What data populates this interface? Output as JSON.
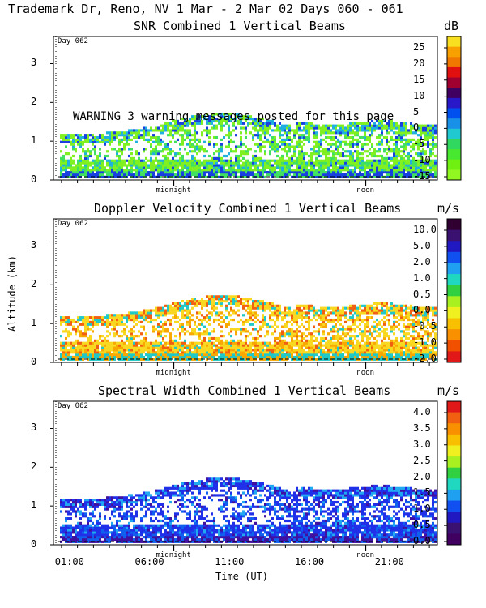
{
  "header": {
    "title": "Trademark Dr, Reno, NV   1 Mar -  2 Mar 02 Days 060 - 061"
  },
  "warning": "WARNING  3 warning messages posted for this page",
  "axes": {
    "ylabel": "Altitude (km)",
    "xlabel": "Time (UT)",
    "day_marker": "Day 062",
    "midnight_label": "midnight",
    "noon_label": "noon",
    "yticks": [
      "0",
      "1",
      "2",
      "3"
    ],
    "xticks": [
      "01:00",
      "06:00",
      "11:00",
      "16:00",
      "21:00"
    ]
  },
  "chart_data": [
    {
      "type": "heatmap",
      "title": "SNR Combined 1 Vertical Beams",
      "unit": "dB",
      "colorbar_ticks": [
        "25",
        "20",
        "15",
        "10",
        "5",
        "0",
        "-5",
        "-10",
        "-15"
      ],
      "colorbar_colors": [
        "#f8e020",
        "#f8a000",
        "#f07800",
        "#e01010",
        "#a00030",
        "#400060",
        "#2818c8",
        "#0050f0",
        "#1890e8",
        "#20c8d0",
        "#30d860",
        "#48e830",
        "#70f010",
        "#90f820"
      ],
      "ylim": [
        0,
        3.7
      ],
      "xlim_hours": [
        0,
        24
      ],
      "dominant_colors": [
        "#80f020",
        "#40e060",
        "#20b0e0",
        "#1840e0"
      ]
    },
    {
      "type": "heatmap",
      "title": "Doppler Velocity Combined 1 Vertical Beams",
      "unit": "m/s",
      "colorbar_ticks": [
        "10.0",
        "5.0",
        "2.0",
        "1.0",
        "0.5",
        "0.0",
        "-0.5",
        "-1.0",
        "-2.0"
      ],
      "colorbar_colors": [
        "#300030",
        "#3a1070",
        "#2018c0",
        "#1050f0",
        "#20a0f0",
        "#20d8c0",
        "#30d040",
        "#a8f020",
        "#f0f020",
        "#f8c000",
        "#f89000",
        "#f05000",
        "#e01818"
      ],
      "ylim": [
        0,
        3.7
      ],
      "xlim_hours": [
        0,
        24
      ],
      "dominant_colors": [
        "#f8d820",
        "#f8a800",
        "#f06010",
        "#20c8c8"
      ]
    },
    {
      "type": "heatmap",
      "title": "Spectral Width Combined 1 Vertical Beams",
      "unit": "m/s",
      "colorbar_ticks": [
        "4.0",
        "3.5",
        "3.0",
        "2.5",
        "2.0",
        "1.5",
        "1.0",
        "0.5",
        "0.0"
      ],
      "colorbar_colors": [
        "#e01818",
        "#f06010",
        "#f89000",
        "#f8c000",
        "#f0f020",
        "#a8f020",
        "#30d040",
        "#20d8c0",
        "#20a0f0",
        "#1050f0",
        "#2018c0",
        "#3a1070",
        "#400060"
      ],
      "ylim": [
        0,
        3.7
      ],
      "xlim_hours": [
        0,
        24
      ],
      "dominant_colors": [
        "#2030e8",
        "#1060f0",
        "#20a8f0",
        "#4010a0"
      ]
    }
  ]
}
